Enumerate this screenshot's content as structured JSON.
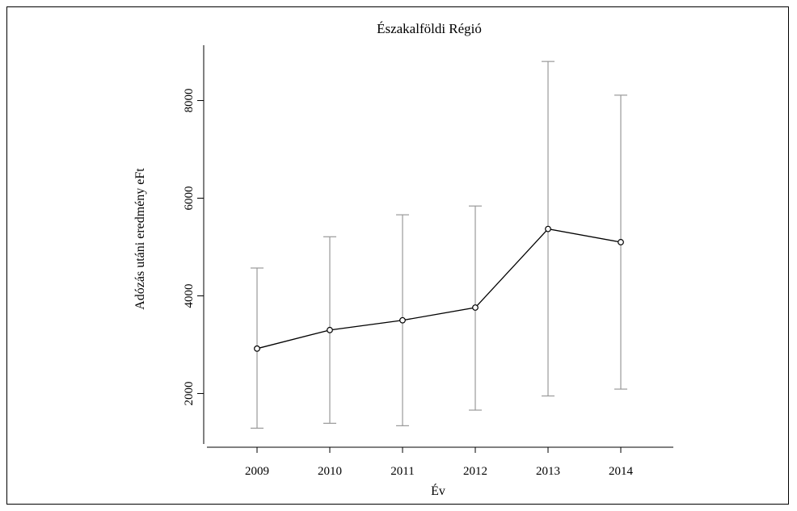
{
  "chart_data": {
    "type": "line",
    "title": "Északalföldi Régió",
    "xlabel": "Év",
    "ylabel": "Adózás utáni eredmény eFt",
    "x": [
      "2009",
      "2010",
      "2011",
      "2012",
      "2013",
      "2014"
    ],
    "y_ticks": [
      "2000",
      "4000",
      "6000",
      "8000"
    ],
    "ylim": [
      900,
      9100
    ],
    "series": [
      {
        "values": [
          2920,
          3300,
          3500,
          3760,
          5370,
          5100
        ],
        "lower": [
          1290,
          1390,
          1340,
          1660,
          1950,
          2090
        ],
        "upper": [
          4570,
          5210,
          5660,
          5840,
          8800,
          8110
        ]
      }
    ],
    "grid": false,
    "colors": {
      "line": "#000000",
      "error_bar": "#999999"
    }
  }
}
